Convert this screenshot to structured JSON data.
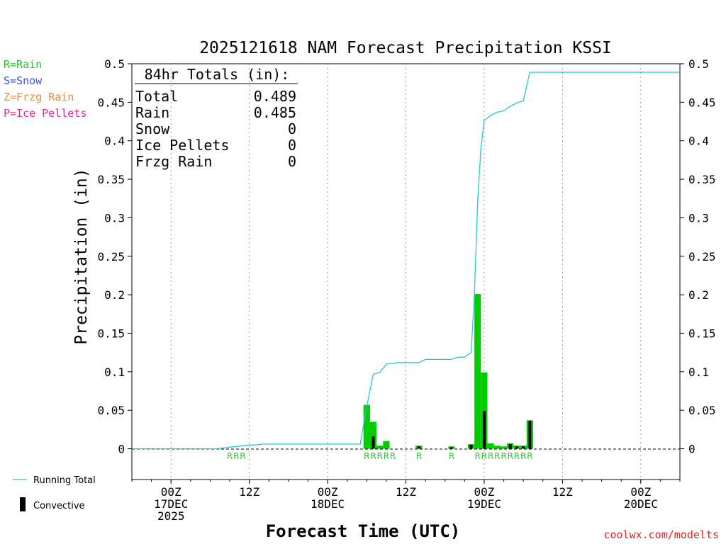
{
  "title": "2025121618 NAM Forecast Precipitation KSSI",
  "legend_types": [
    {
      "label": "R=Rain",
      "color": "#22cc22"
    },
    {
      "label": "S=Snow",
      "color": "#3355dd"
    },
    {
      "label": "Z=Frzg Rain",
      "color": "#ee8833"
    },
    {
      "label": "P=Ice Pellets",
      "color": "#ee2299"
    }
  ],
  "totals": {
    "heading": "84hr Totals (in):",
    "rows": [
      {
        "label": "Total",
        "value": "0.489"
      },
      {
        "label": "Rain",
        "value": "0.485"
      },
      {
        "label": "Snow",
        "value": "0"
      },
      {
        "label": "Ice Pellets",
        "value": "0"
      },
      {
        "label": "Frzg Rain",
        "value": "0"
      }
    ]
  },
  "bottom_legend": {
    "running_total": "Running Total",
    "convective": "Convective"
  },
  "watermark": "coolwx.com/modelts",
  "chart_data": {
    "type": "bar",
    "ylabel": "Precipitation (in)",
    "xlabel": "Forecast Time (UTC)",
    "ylim": [
      -0.04,
      0.5
    ],
    "y_ticks": [
      0,
      0.05,
      0.1,
      0.15,
      0.2,
      0.25,
      0.3,
      0.35,
      0.4,
      0.45,
      0.5
    ],
    "y_tick_labels": [
      "0",
      "0.05",
      "0.1",
      "0.15",
      "0.2",
      "0.25",
      "0.3",
      "0.35",
      "0.4",
      "0.45",
      "0.5"
    ],
    "x_unit": "hours since 2025-12-16 18Z",
    "xlim": [
      0,
      84
    ],
    "x_ticks": [
      {
        "hour": 6,
        "lines": [
          "00Z",
          "17DEC",
          "2025"
        ]
      },
      {
        "hour": 18,
        "lines": [
          "12Z"
        ]
      },
      {
        "hour": 30,
        "lines": [
          "00Z",
          "18DEC"
        ]
      },
      {
        "hour": 42,
        "lines": [
          "12Z"
        ]
      },
      {
        "hour": 54,
        "lines": [
          "00Z",
          "19DEC"
        ]
      },
      {
        "hour": 66,
        "lines": [
          "12Z"
        ]
      },
      {
        "hour": 78,
        "lines": [
          "00Z",
          "20DEC"
        ]
      }
    ],
    "precip_bars": [
      {
        "hour": 36,
        "total": 0.057,
        "convective": 0
      },
      {
        "hour": 37,
        "total": 0.035,
        "convective": 0.016
      },
      {
        "hour": 38,
        "total": 0.004,
        "convective": 0
      },
      {
        "hour": 39,
        "total": 0.01,
        "convective": 0
      },
      {
        "hour": 44,
        "total": 0.004,
        "convective": 0.003
      },
      {
        "hour": 49,
        "total": 0.003,
        "convective": 0.002
      },
      {
        "hour": 52,
        "total": 0.006,
        "convective": 0.005
      },
      {
        "hour": 53,
        "total": 0.201,
        "convective": 0
      },
      {
        "hour": 54,
        "total": 0.099,
        "convective": 0.049
      },
      {
        "hour": 55,
        "total": 0.007,
        "convective": 0
      },
      {
        "hour": 56,
        "total": 0.004,
        "convective": 0
      },
      {
        "hour": 57,
        "total": 0.003,
        "convective": 0
      },
      {
        "hour": 58,
        "total": 0.007,
        "convective": 0.006
      },
      {
        "hour": 59,
        "total": 0.004,
        "convective": 0.003
      },
      {
        "hour": 60,
        "total": 0.004,
        "convective": 0.003
      },
      {
        "hour": 61,
        "total": 0.037,
        "convective": 0.036
      }
    ],
    "type_markers": [
      {
        "hour": 15,
        "label": "R"
      },
      {
        "hour": 16,
        "label": "R"
      },
      {
        "hour": 17,
        "label": "R"
      },
      {
        "hour": 36,
        "label": "R"
      },
      {
        "hour": 37,
        "label": "R"
      },
      {
        "hour": 38,
        "label": "R"
      },
      {
        "hour": 39,
        "label": "R"
      },
      {
        "hour": 40,
        "label": "R"
      },
      {
        "hour": 44,
        "label": "R"
      },
      {
        "hour": 49,
        "label": "R"
      },
      {
        "hour": 53,
        "label": "R"
      },
      {
        "hour": 54,
        "label": "R"
      },
      {
        "hour": 55,
        "label": "R"
      },
      {
        "hour": 56,
        "label": "R"
      },
      {
        "hour": 57,
        "label": "R"
      },
      {
        "hour": 58,
        "label": "R"
      },
      {
        "hour": 59,
        "label": "R"
      },
      {
        "hour": 60,
        "label": "R"
      },
      {
        "hour": 61,
        "label": "R"
      }
    ],
    "running_total": {
      "hours": [
        0,
        13,
        14,
        15,
        16,
        17,
        18,
        19,
        20,
        21,
        22,
        23,
        24,
        25,
        26,
        27,
        28,
        29,
        30,
        31,
        32,
        33,
        34,
        35,
        36,
        37,
        38,
        39,
        40,
        41,
        42,
        43,
        44,
        45,
        46,
        47,
        48,
        49,
        50,
        51,
        52,
        52.5,
        53,
        53.5,
        54,
        55,
        56,
        57,
        58,
        59,
        60,
        61,
        84
      ],
      "values": [
        0,
        0,
        0.001,
        0.002,
        0.003,
        0.004,
        0.005,
        0.005,
        0.006,
        0.006,
        0.006,
        0.006,
        0.006,
        0.006,
        0.006,
        0.006,
        0.006,
        0.006,
        0.006,
        0.006,
        0.006,
        0.006,
        0.006,
        0.006,
        0.055,
        0.097,
        0.099,
        0.11,
        0.111,
        0.112,
        0.112,
        0.112,
        0.112,
        0.116,
        0.116,
        0.116,
        0.116,
        0.116,
        0.119,
        0.119,
        0.125,
        0.2,
        0.32,
        0.39,
        0.426,
        0.433,
        0.437,
        0.439,
        0.445,
        0.449,
        0.452,
        0.489,
        0.489
      ]
    }
  }
}
